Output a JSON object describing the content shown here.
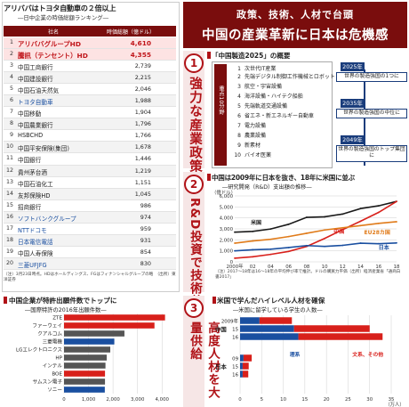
{
  "ranking": {
    "title": "アリババはトヨタ自動車の２倍以上",
    "subtitle": "―日中企業の時価総額ランキング―",
    "header_name": "社名",
    "header_value": "時価総額（億ドル）",
    "rows": [
      {
        "rank": "1",
        "name": "アリババグループHD",
        "value": "4,610",
        "highlight": true,
        "jp": false
      },
      {
        "rank": "2",
        "name": "騰訊（テンセント）HD",
        "value": "4,355",
        "highlight": true,
        "jp": false
      },
      {
        "rank": "3",
        "name": "中国工商銀行",
        "value": "2,739",
        "highlight": false,
        "jp": false
      },
      {
        "rank": "4",
        "name": "中国建設銀行",
        "value": "2,215",
        "highlight": false,
        "jp": false
      },
      {
        "rank": "5",
        "name": "中国石油天然気",
        "value": "2,046",
        "highlight": false,
        "jp": false
      },
      {
        "rank": "6",
        "name": "トヨタ自動車",
        "value": "1,988",
        "highlight": false,
        "jp": true
      },
      {
        "rank": "7",
        "name": "中国移動",
        "value": "1,904",
        "highlight": false,
        "jp": false
      },
      {
        "rank": "8",
        "name": "中国農業銀行",
        "value": "1,796",
        "highlight": false,
        "jp": false
      },
      {
        "rank": "9",
        "name": "HSBCHD",
        "value": "1,766",
        "highlight": false,
        "jp": false
      },
      {
        "rank": "10",
        "name": "中国平安保険(集団)",
        "value": "1,678",
        "highlight": false,
        "jp": false
      },
      {
        "rank": "11",
        "name": "中国銀行",
        "value": "1,446",
        "highlight": false,
        "jp": false
      },
      {
        "rank": "12",
        "name": "貴州茅台酒",
        "value": "1,219",
        "highlight": false,
        "jp": false
      },
      {
        "rank": "13",
        "name": "中国石油化工",
        "value": "1,151",
        "highlight": false,
        "jp": false
      },
      {
        "rank": "14",
        "name": "友邦保険HD",
        "value": "1,045",
        "highlight": false,
        "jp": false
      },
      {
        "rank": "15",
        "name": "招商銀行",
        "value": "986",
        "highlight": false,
        "jp": false
      },
      {
        "rank": "16",
        "name": "ソフトバンクグループ",
        "value": "974",
        "highlight": false,
        "jp": true
      },
      {
        "rank": "17",
        "name": "NTTドコモ",
        "value": "959",
        "highlight": false,
        "jp": true
      },
      {
        "rank": "18",
        "name": "日本電信電話",
        "value": "931",
        "highlight": false,
        "jp": true
      },
      {
        "rank": "19",
        "name": "中国人寿保険",
        "value": "854",
        "highlight": false,
        "jp": false
      },
      {
        "rank": "20",
        "name": "三菱UFJFG",
        "value": "830",
        "highlight": false,
        "jp": true
      }
    ],
    "note": "（注）3月23日時点。HDはホールディングス、FGはフィナンシャルグループの略　（出所）東洋証券"
  },
  "headline": {
    "line1": "政策、技術、人材で台頭",
    "line2": "中国の産業革新に日本は危機感"
  },
  "sections": [
    {
      "num": "1",
      "label": "強力な産業政策"
    },
    {
      "num": "2",
      "label": "R&D投資で技術革新"
    },
    {
      "num": "3",
      "label": "高度人材を大量供給"
    }
  ],
  "mic2025": {
    "title": "「中国製造2025」の概要",
    "side_label": "重点10分野",
    "items": [
      "次世代IT産業",
      "先端デジタル制御工作機械とロボット",
      "航空・宇宙設備",
      "海洋設備・ハイテク船舶",
      "先端軌道交通設備",
      "省エネ・新エネルギー自動車",
      "電力設備",
      "農業設備",
      "新素材",
      "バイオ医薬"
    ],
    "timeline": [
      {
        "year": "2025年",
        "text": "世界の製造強国の1つに"
      },
      {
        "year": "2035年",
        "text": "世界の製造強国の中位に"
      },
      {
        "year": "2049年",
        "text": "世界の製造強国のトップ集団に"
      }
    ]
  },
  "rd": {
    "title": "中国は2009年に日本を抜き、18年に米国に並ぶ",
    "subtitle": "―研究開発（R&D）支出額の推移―",
    "note": "（注）2017〜18年は16〜18年の平均伸び率で推計。ドルの購買力平価（出所）経済産業省「通商白書2017」",
    "chart_data": {
      "type": "line",
      "title": "中国は2009年に日本を抜き、18年に米国に並ぶ",
      "subtitle": "―研究開発（R&D）支出額の推移―",
      "ylabel": "（億ドル）",
      "ylim": [
        0,
        6000
      ],
      "yticks": [
        0,
        1000,
        2000,
        3000,
        4000,
        5000,
        6000
      ],
      "x_tick_labels": [
        "2000年",
        "02",
        "04",
        "06",
        "08",
        "10",
        "12",
        "14",
        "16",
        "18"
      ],
      "x": [
        2000,
        2002,
        2004,
        2006,
        2008,
        2010,
        2012,
        2014,
        2016,
        2018
      ],
      "series": [
        {
          "name": "米国",
          "color": "#1a1a1a",
          "values": [
            2700,
            2770,
            2990,
            3420,
            4050,
            4100,
            4350,
            4850,
            5100,
            5500
          ]
        },
        {
          "name": "中国",
          "color": "#d8201b",
          "values": [
            330,
            460,
            680,
            950,
            1400,
            2130,
            2930,
            3700,
            4500,
            5500
          ]
        },
        {
          "name": "EU28カ国",
          "color": "#e07b1a",
          "values": [
            1700,
            1900,
            2050,
            2300,
            2600,
            2900,
            3100,
            3300,
            3500,
            3650
          ]
        },
        {
          "name": "日本",
          "color": "#1a4fa0",
          "values": [
            1000,
            1100,
            1150,
            1300,
            1480,
            1400,
            1500,
            1700,
            1650,
            1720
          ]
        }
      ],
      "grid": true
    }
  },
  "patent": {
    "title": "中国企業が特許出願件数でトップに",
    "subtitle": "―国際特許の2016年出願件数―",
    "chart_data": {
      "type": "bar",
      "orientation": "horizontal",
      "title": "中国企業が特許出願件数でトップに",
      "subtitle": "―国際特許の2016年出願件数―",
      "categories": [
        "ZTE",
        "ファーウェイ",
        "クアルコム",
        "三菱電機",
        "LGエレクトロニクス",
        "HP",
        "インテル",
        "BOE",
        "サムスン電子",
        "ソニー"
      ],
      "values": [
        4123,
        3692,
        2466,
        2053,
        1888,
        1742,
        1692,
        1673,
        1672,
        1665
      ],
      "colors": [
        "#d8201b",
        "#d8201b",
        "#555555",
        "#1a4fa0",
        "#555555",
        "#555555",
        "#555555",
        "#d8201b",
        "#555555",
        "#1a4fa0"
      ],
      "xlim": [
        0,
        4500
      ],
      "xticks": [
        0,
        1000,
        2000,
        3000,
        4000
      ],
      "grid": true
    }
  },
  "abroad": {
    "title": "米国で学んだハイレベル人材を確保",
    "subtitle": "―米国に留学している学生の人数―",
    "chart_data": {
      "type": "bar",
      "orientation": "horizontal",
      "stacked": true,
      "title": "米国で学んだハイレベル人材を確保",
      "subtitle": "―米国に留学している学生の人数―",
      "xlabel": "（万人）",
      "xlim": [
        0,
        35
      ],
      "xticks": [
        0,
        5,
        10,
        15,
        20,
        25,
        30,
        35
      ],
      "groups": [
        {
          "name": "中国",
          "categories": [
            "2009年",
            "15",
            "16"
          ]
        },
        {
          "name": "日本",
          "categories": [
            "09",
            "15",
            "16"
          ]
        }
      ],
      "categories": [
        "2009年",
        "15",
        "16",
        "09",
        "15",
        "16"
      ],
      "series": [
        {
          "name": "理系",
          "color": "#1a4fa0",
          "values": [
            4.5,
            12.5,
            13.5,
            0.8,
            0.6,
            0.6
          ]
        },
        {
          "name": "文系、その他",
          "color": "#d8201b",
          "values": [
            7.5,
            17.5,
            19.5,
            1.9,
            1.4,
            1.3
          ]
        }
      ],
      "grid": true
    }
  },
  "colors": {
    "brand_dark_red": "#7a0d0d",
    "accent_red": "#b01217",
    "japan_blue": "#1a4fa0"
  }
}
